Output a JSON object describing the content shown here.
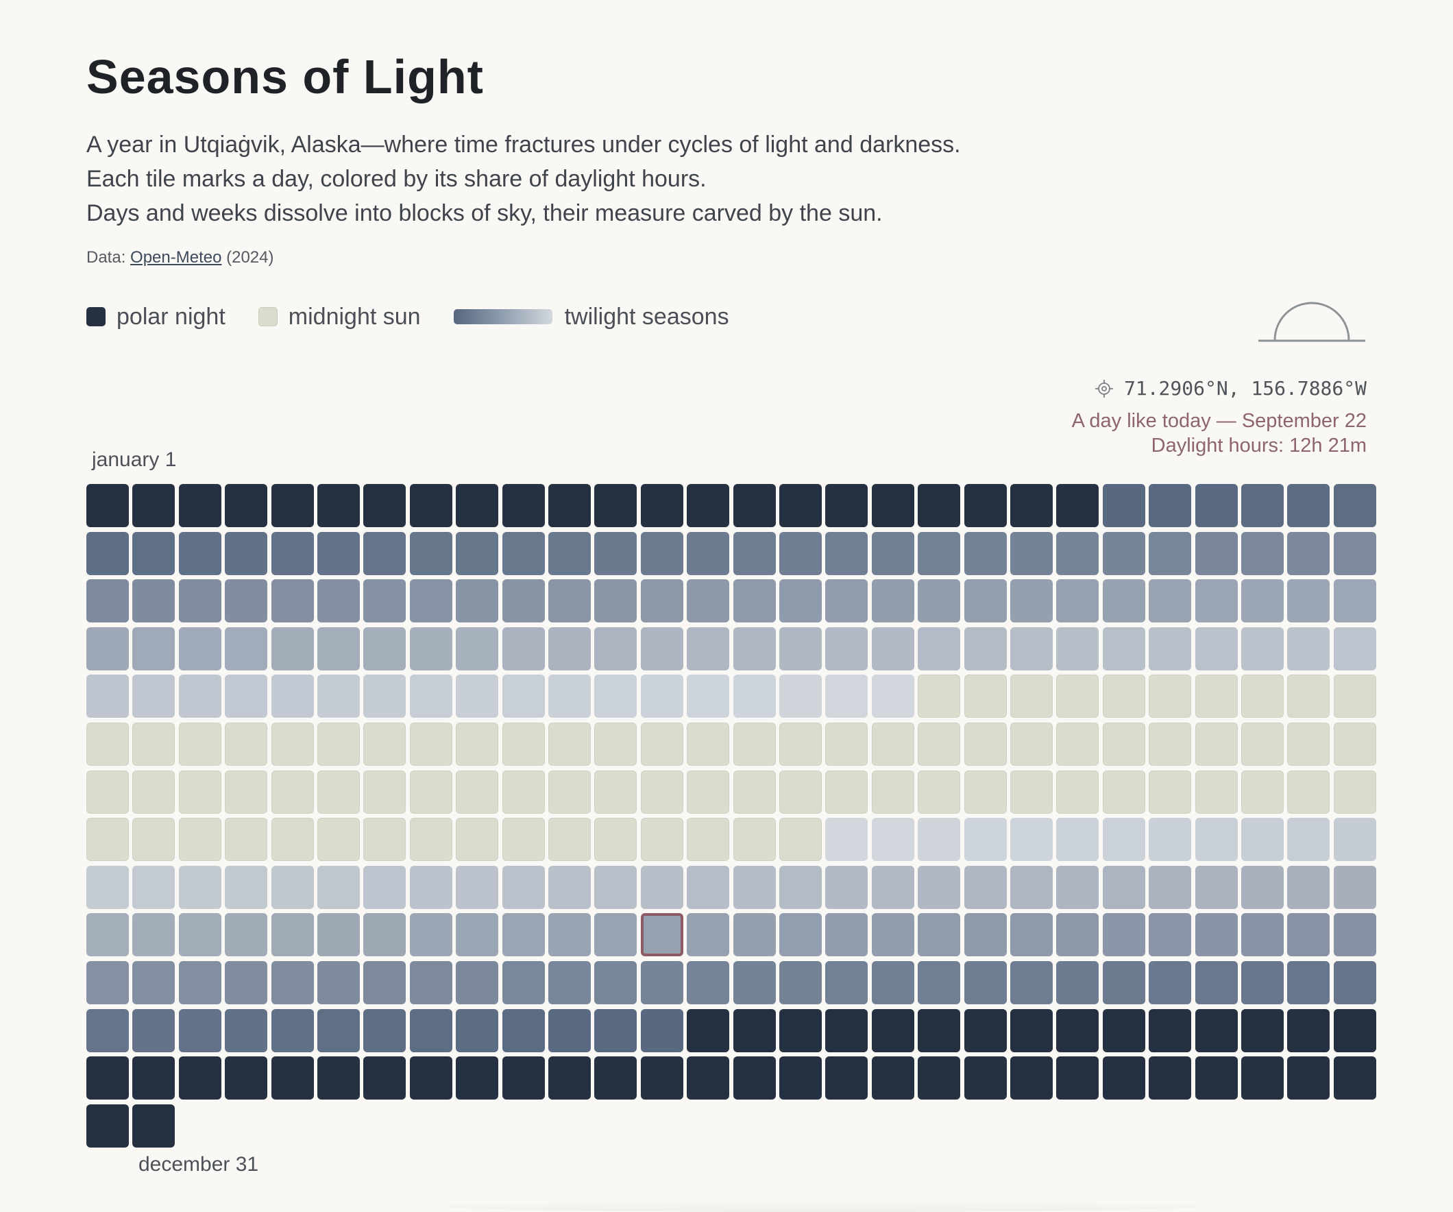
{
  "header": {
    "title": "Seasons of Light",
    "description": [
      "A year in Utqiaġvik, Alaska—where time fractures under cycles of light and darkness.",
      "Each tile marks a day, colored by its share of daylight hours.",
      "Days and weeks dissolve into blocks of sky, their measure carved by the sun."
    ],
    "source_prefix": "Data: ",
    "source_link": "Open-Meteo",
    "source_suffix": " (2024)"
  },
  "legend": {
    "polar_night": "polar night",
    "midnight_sun": "midnight sun",
    "twilight": "twilight seasons"
  },
  "location": {
    "coords": "71.2906°N, 156.7886°W"
  },
  "highlight": {
    "line1": "A day like today — September 22",
    "line2": "Daylight hours: 12h 21m",
    "day_index": 265
  },
  "labels": {
    "start": "january 1",
    "end": "december 31"
  },
  "colors": {
    "polar_night": "#253141",
    "midnight_sun": "#dbdccd",
    "twilight_dark": "#56677f",
    "twilight_light": "#d3d8de",
    "highlight": "#8d5a66",
    "background": "#f9f8f4"
  },
  "chart_data": {
    "type": "heatmap",
    "year": 2024,
    "days": 366,
    "columns": 28,
    "unit": "daylight hours",
    "polar_night_ranges": [
      [
        1,
        22
      ],
      [
        322,
        366
      ]
    ],
    "midnight_sun_range": [
      131,
      212
    ],
    "highlight": {
      "date": "September 22",
      "daylight": "12h 21m"
    }
  }
}
